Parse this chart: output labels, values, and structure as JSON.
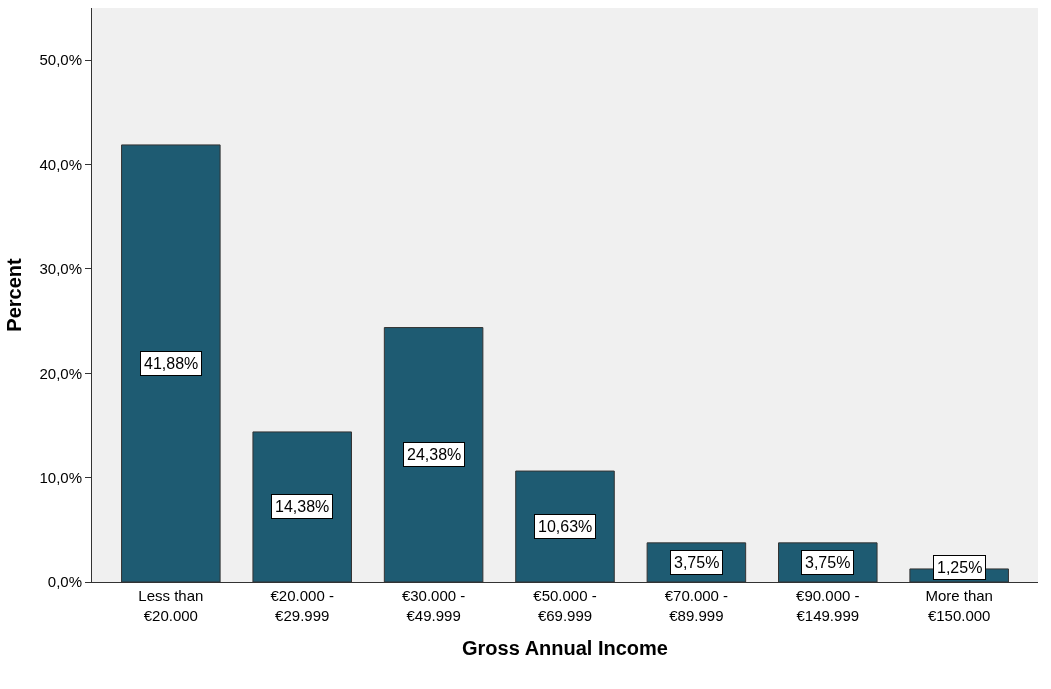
{
  "chart_data": {
    "type": "bar",
    "xlabel": "Gross Annual Income",
    "ylabel": "Percent",
    "categories": [
      "Less than €20.000",
      "€20.000 - €29.999",
      "€30.000 - €49.999",
      "€50.000 - €69.999",
      "€70.000 - €89.999",
      "€90.000 - €149.999",
      "More than €150.000"
    ],
    "values": [
      41.88,
      14.38,
      24.38,
      10.63,
      3.75,
      3.75,
      1.25
    ],
    "value_labels": [
      "41,88%",
      "14,38%",
      "24,38%",
      "10,63%",
      "3,75%",
      "3,75%",
      "1,25%"
    ],
    "color": "#1e5b72",
    "ylim": [
      0,
      55
    ],
    "yticks": [
      {
        "value": 0,
        "label": "0,0%"
      },
      {
        "value": 10,
        "label": "10,0%"
      },
      {
        "value": 20,
        "label": "20,0%"
      },
      {
        "value": 30,
        "label": "30,0%"
      },
      {
        "value": 40,
        "label": "40,0%"
      },
      {
        "value": 50,
        "label": "50,0%"
      }
    ],
    "grid": false
  }
}
